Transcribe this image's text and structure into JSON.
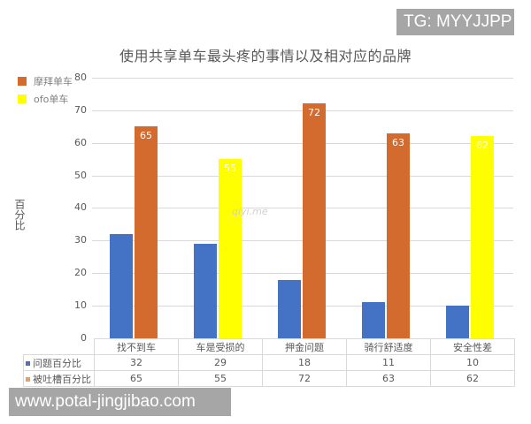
{
  "watermarks": {
    "top_right": "TG: MYYJJPP",
    "bottom_left": "www.potal-jingjibao.com",
    "center": "qiyi.me"
  },
  "colors": {
    "series1": "#4472c4",
    "mobike": "#d46b2e",
    "ofo": "#ffff00",
    "grid": "#d9d9d9",
    "text": "#595959"
  },
  "legend": {
    "items": [
      {
        "label": "摩拜单车",
        "color": "#d46b2e"
      },
      {
        "label": "ofo单车",
        "color": "#ffff00"
      }
    ]
  },
  "chart_data": {
    "type": "bar",
    "title": "使用共享单车最头疼的事情以及相对应的品牌",
    "xlabel": "",
    "ylabel": "百分比",
    "ylim": [
      0,
      80
    ],
    "yticks": [
      "0",
      "10",
      "20",
      "30",
      "40",
      "50",
      "60",
      "70",
      "80"
    ],
    "grid": true,
    "legend_position": "top-left",
    "categories": [
      "找不到车",
      "车是受损的",
      "押金问题",
      "骑行舒适度",
      "安全性差"
    ],
    "series": [
      {
        "name": "问题百分比",
        "values": [
          32,
          29,
          18,
          11,
          10
        ],
        "color": "#4472c4"
      },
      {
        "name": "被吐槽百分比",
        "values": [
          65,
          55,
          72,
          63,
          62
        ],
        "colors": [
          "#d46b2e",
          "#ffff00",
          "#d46b2e",
          "#d46b2e",
          "#ffff00"
        ],
        "brands": [
          "摩拜单车",
          "ofo单车",
          "摩拜单车",
          "摩拜单车",
          "ofo单车"
        ]
      }
    ],
    "data_labels": [
      "65",
      "55",
      "72",
      "63",
      "62"
    ],
    "data_table": {
      "rows": [
        {
          "label": "问题百分比",
          "values": [
            "32",
            "29",
            "18",
            "11",
            "10"
          ]
        },
        {
          "label": "被吐槽百分比",
          "values": [
            "65",
            "55",
            "72",
            "63",
            "62"
          ]
        }
      ]
    }
  }
}
